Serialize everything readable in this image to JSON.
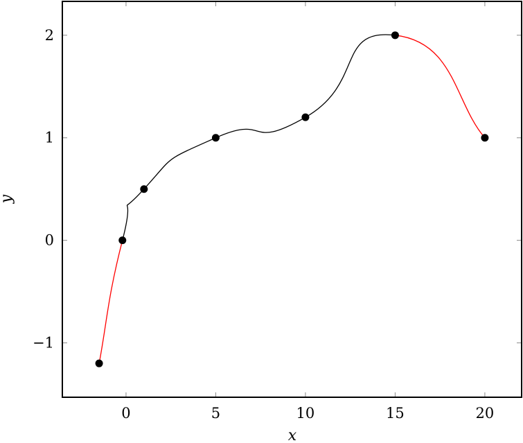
{
  "chart_data": {
    "type": "line",
    "title": "",
    "xlabel": "x",
    "ylabel": "y",
    "xlim": [
      -3.55,
      22.05
    ],
    "ylim": [
      -1.53,
      2.33
    ],
    "xticks": [
      0,
      5,
      10,
      15,
      20
    ],
    "xtick_labels": [
      "0",
      "5",
      "10",
      "15",
      "20"
    ],
    "yticks": [
      -1,
      0,
      1,
      2
    ],
    "ytick_labels": [
      "−1",
      "0",
      "1",
      "2"
    ],
    "grid": false,
    "smooth": true,
    "points": {
      "x": [
        -1.5,
        -0.2,
        1,
        5,
        10,
        15,
        20
      ],
      "y": [
        -1.2,
        0,
        0.5,
        1,
        1.2,
        2,
        1
      ]
    },
    "segment_colors": [
      "#ff0000",
      "#000000",
      "#000000",
      "#000000",
      "#000000",
      "#ff0000"
    ],
    "marker_color": "#000000"
  }
}
